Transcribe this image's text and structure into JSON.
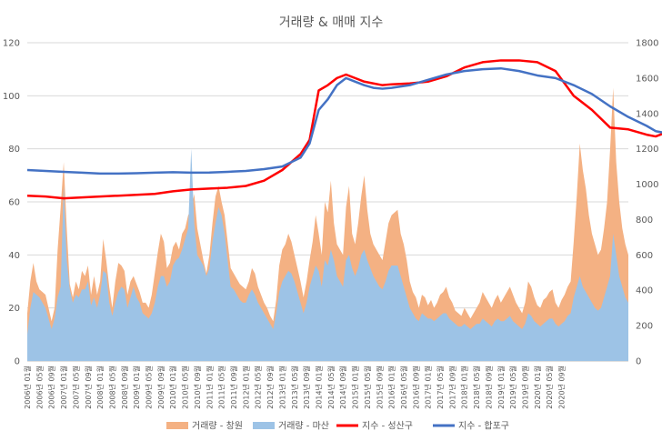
{
  "chart_data": {
    "type": "area+line",
    "title": "거래량 & 매매 지수",
    "y_left": {
      "ticks": [
        0,
        20,
        40,
        60,
        80,
        100,
        120
      ],
      "ylim": [
        0,
        120
      ]
    },
    "y_right": {
      "ticks": [
        0,
        200,
        400,
        600,
        800,
        1000,
        1200,
        1400,
        1600,
        1800
      ],
      "ylim": [
        0,
        1800
      ]
    },
    "x_start": "2006-01",
    "x_end": "2020-09",
    "x_tick_labels": [
      "2006년 01월",
      "2006년 05월",
      "2006년 09월",
      "2007년 01월",
      "2007년 05월",
      "2007년 09월",
      "2008년 01월",
      "2008년 05월",
      "2008년 09월",
      "2009년 01월",
      "2009년 05월",
      "2009년 09월",
      "2010년 01월",
      "2010년 05월",
      "2010년 09월",
      "2011년 01월",
      "2011년 05월",
      "2011년 09월",
      "2012년 01월",
      "2012년 05월",
      "2012년 09월",
      "2013년 01월",
      "2013년 05월",
      "2013년 09월",
      "2014년 01월",
      "2014년 05월",
      "2014년 09월",
      "2015년 01월",
      "2015년 05월",
      "2015년 09월",
      "2016년 01월",
      "2016년 05월",
      "2016년 09월",
      "2017년 01월",
      "2017년 05월",
      "2017년 09월",
      "2018년 01월",
      "2018년 05월",
      "2018년 09월",
      "2019년 01월",
      "2019년 05월",
      "2019년 09월",
      "2020년 01월",
      "2020년 05월",
      "2020년 09월"
    ],
    "grid": true,
    "legend_position": "bottom",
    "series": [
      {
        "name": "거래량 - 창원",
        "kind": "area",
        "axis": "left",
        "color": "#F4B183",
        "values": [
          18,
          30,
          37,
          30,
          27,
          26,
          25,
          20,
          15,
          20,
          42,
          58,
          75,
          50,
          29,
          24,
          30,
          27,
          34,
          32,
          36,
          25,
          32,
          25,
          30,
          46,
          38,
          28,
          20,
          30,
          37,
          36,
          34,
          25,
          30,
          32,
          29,
          26,
          22,
          22,
          20,
          25,
          33,
          41,
          48,
          45,
          35,
          37,
          43,
          45,
          42,
          48,
          50,
          55,
          57,
          63,
          50,
          44,
          38,
          33,
          40,
          52,
          62,
          66,
          60,
          55,
          45,
          35,
          33,
          31,
          29,
          28,
          27,
          30,
          35,
          33,
          28,
          25,
          22,
          20,
          17,
          15,
          23,
          36,
          42,
          44,
          48,
          45,
          40,
          35,
          30,
          24,
          30,
          38,
          45,
          55,
          48,
          40,
          60,
          56,
          68,
          52,
          44,
          42,
          40,
          58,
          66,
          48,
          44,
          52,
          62,
          70,
          57,
          48,
          44,
          42,
          40,
          38,
          45,
          52,
          55,
          56,
          57,
          48,
          44,
          38,
          30,
          26,
          24,
          20,
          25,
          24,
          21,
          23,
          20,
          22,
          25,
          26,
          28,
          24,
          22,
          19,
          18,
          17,
          20,
          18,
          16,
          18,
          20,
          22,
          26,
          24,
          22,
          20,
          23,
          25,
          22,
          24,
          26,
          28,
          25,
          22,
          20,
          18,
          22,
          30,
          28,
          24,
          21,
          20,
          23,
          24,
          26,
          27,
          22,
          20,
          23,
          25,
          28,
          30,
          45,
          62,
          82,
          72,
          65,
          55,
          48,
          44,
          40,
          42,
          50,
          60,
          80,
          103,
          75,
          60,
          50,
          44,
          40
        ]
      },
      {
        "name": "거래량 - 마산",
        "kind": "area",
        "axis": "left",
        "color": "#9DC3E6",
        "values": [
          10,
          20,
          26,
          25,
          24,
          22,
          20,
          16,
          12,
          16,
          24,
          28,
          66,
          38,
          27,
          22,
          25,
          24,
          27,
          27,
          30,
          21,
          24,
          20,
          25,
          34,
          33,
          22,
          17,
          22,
          26,
          28,
          27,
          20,
          24,
          28,
          24,
          22,
          18,
          17,
          16,
          18,
          22,
          28,
          32,
          32,
          28,
          30,
          36,
          38,
          39,
          42,
          46,
          50,
          80,
          52,
          40,
          38,
          36,
          32,
          35,
          45,
          52,
          58,
          55,
          48,
          38,
          28,
          27,
          25,
          23,
          22,
          22,
          25,
          27,
          25,
          22,
          20,
          18,
          16,
          14,
          12,
          18,
          26,
          30,
          32,
          34,
          33,
          30,
          26,
          22,
          18,
          22,
          28,
          32,
          36,
          34,
          28,
          38,
          36,
          42,
          38,
          32,
          30,
          28,
          38,
          40,
          35,
          32,
          35,
          40,
          42,
          38,
          35,
          32,
          30,
          28,
          27,
          30,
          34,
          36,
          36,
          36,
          32,
          28,
          24,
          20,
          18,
          16,
          15,
          18,
          17,
          16,
          16,
          15,
          16,
          17,
          18,
          18,
          16,
          15,
          14,
          13,
          13,
          14,
          13,
          12,
          13,
          14,
          14,
          16,
          15,
          14,
          13,
          15,
          16,
          15,
          15,
          16,
          17,
          15,
          14,
          13,
          12,
          14,
          18,
          17,
          15,
          14,
          13,
          14,
          15,
          16,
          16,
          14,
          13,
          14,
          15,
          17,
          18,
          24,
          28,
          32,
          28,
          26,
          24,
          22,
          20,
          19,
          20,
          24,
          28,
          32,
          48,
          40,
          32,
          28,
          24,
          22
        ]
      },
      {
        "name": "지수 - 성산구",
        "kind": "line",
        "axis": "right",
        "color": "#FF0000",
        "points": [
          [
            0,
            935
          ],
          [
            6,
            930
          ],
          [
            12,
            920
          ],
          [
            18,
            925
          ],
          [
            24,
            930
          ],
          [
            30,
            935
          ],
          [
            36,
            940
          ],
          [
            42,
            945
          ],
          [
            48,
            960
          ],
          [
            54,
            970
          ],
          [
            60,
            975
          ],
          [
            66,
            980
          ],
          [
            72,
            990
          ],
          [
            78,
            1020
          ],
          [
            84,
            1080
          ],
          [
            90,
            1170
          ],
          [
            93,
            1250
          ],
          [
            96,
            1530
          ],
          [
            99,
            1560
          ],
          [
            102,
            1600
          ],
          [
            105,
            1620
          ],
          [
            108,
            1600
          ],
          [
            111,
            1580
          ],
          [
            114,
            1570
          ],
          [
            117,
            1560
          ],
          [
            120,
            1565
          ],
          [
            126,
            1570
          ],
          [
            132,
            1580
          ],
          [
            138,
            1610
          ],
          [
            144,
            1660
          ],
          [
            150,
            1690
          ],
          [
            156,
            1700
          ],
          [
            162,
            1700
          ],
          [
            168,
            1690
          ],
          [
            174,
            1640
          ],
          [
            180,
            1500
          ],
          [
            186,
            1420
          ],
          [
            192,
            1320
          ],
          [
            198,
            1310
          ],
          [
            204,
            1280
          ],
          [
            207,
            1270
          ],
          [
            210,
            1290
          ],
          [
            213,
            1300
          ],
          [
            216,
            1310
          ],
          [
            219,
            1340
          ],
          [
            222,
            1370
          ],
          [
            225,
            1380
          ]
        ]
      },
      {
        "name": "지수 - 합포구",
        "kind": "line",
        "axis": "right",
        "color": "#4472C4",
        "points": [
          [
            0,
            1080
          ],
          [
            6,
            1075
          ],
          [
            12,
            1070
          ],
          [
            18,
            1065
          ],
          [
            24,
            1060
          ],
          [
            30,
            1060
          ],
          [
            36,
            1062
          ],
          [
            42,
            1065
          ],
          [
            48,
            1068
          ],
          [
            54,
            1065
          ],
          [
            60,
            1066
          ],
          [
            66,
            1070
          ],
          [
            72,
            1075
          ],
          [
            78,
            1085
          ],
          [
            84,
            1100
          ],
          [
            90,
            1150
          ],
          [
            93,
            1230
          ],
          [
            96,
            1420
          ],
          [
            99,
            1480
          ],
          [
            102,
            1560
          ],
          [
            105,
            1600
          ],
          [
            108,
            1580
          ],
          [
            111,
            1560
          ],
          [
            114,
            1545
          ],
          [
            117,
            1540
          ],
          [
            120,
            1545
          ],
          [
            126,
            1560
          ],
          [
            132,
            1590
          ],
          [
            138,
            1620
          ],
          [
            144,
            1640
          ],
          [
            150,
            1650
          ],
          [
            156,
            1655
          ],
          [
            162,
            1640
          ],
          [
            168,
            1615
          ],
          [
            174,
            1600
          ],
          [
            180,
            1560
          ],
          [
            186,
            1510
          ],
          [
            192,
            1440
          ],
          [
            198,
            1380
          ],
          [
            204,
            1330
          ],
          [
            207,
            1300
          ],
          [
            210,
            1290
          ],
          [
            213,
            1285
          ],
          [
            216,
            1280
          ],
          [
            219,
            1285
          ],
          [
            222,
            1290
          ],
          [
            225,
            1295
          ]
        ]
      }
    ]
  }
}
